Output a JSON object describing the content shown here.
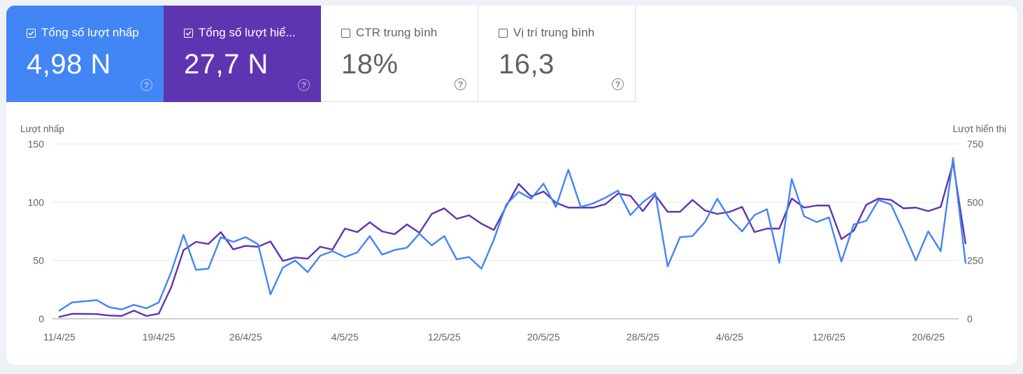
{
  "cards": [
    {
      "label": "Tổng số lượt nhấp",
      "value": "4,98 N",
      "checked": true,
      "color": "#4285f4"
    },
    {
      "label": "Tổng số lượt hiể...",
      "value": "27,7 N",
      "checked": true,
      "color": "#5e35b1"
    },
    {
      "label": "CTR trung bình",
      "value": "18%",
      "checked": false
    },
    {
      "label": "Vị trí trung bình",
      "value": "16,3",
      "checked": false
    }
  ],
  "help_glyph": "?",
  "chart": {
    "left_axis_title": "Lượt nhấp",
    "right_axis_title": "Lượt hiển thị"
  },
  "chart_data": {
    "type": "line",
    "title": "",
    "xlabel": "",
    "ylabel": "Lượt nhấp",
    "y2label": "Lượt hiển thị",
    "ylim": [
      0,
      150
    ],
    "y2lim": [
      0,
      750
    ],
    "yticks": [
      0,
      50,
      100,
      150
    ],
    "y2ticks": [
      0,
      250,
      500,
      750
    ],
    "grid": true,
    "legend": "none (metric cards above act as legend)",
    "x_tick_labels": [
      "11/4/25",
      "19/4/25",
      "26/4/25",
      "4/5/25",
      "12/5/25",
      "20/5/25",
      "28/5/25",
      "4/6/25",
      "12/6/25",
      "20/6/25"
    ],
    "x_tick_indices": [
      0,
      8,
      15,
      23,
      31,
      39,
      47,
      54,
      62,
      70
    ],
    "x_start": "11/4/25",
    "x_end": "23/6/25",
    "series": [
      {
        "name": "Lượt nhấp",
        "axis": "left",
        "color": "#4285f4",
        "values": [
          7,
          14,
          15,
          16,
          10,
          8,
          12,
          9,
          14,
          40,
          72,
          42,
          43,
          70,
          66,
          70,
          64,
          21,
          44,
          50,
          40,
          54,
          58,
          53,
          57,
          71,
          55,
          59,
          61,
          73,
          63,
          71,
          51,
          53,
          43,
          68,
          98,
          109,
          103,
          116,
          96,
          128,
          96,
          99,
          104,
          110,
          89,
          100,
          108,
          45,
          70,
          71,
          83,
          103,
          86,
          75,
          89,
          94,
          48,
          120,
          88,
          83,
          87,
          49,
          81,
          84,
          102,
          98,
          75,
          50,
          75,
          58,
          138,
          48
        ]
      },
      {
        "name": "Lượt hiển thị",
        "axis": "right",
        "color": "#5e35b1",
        "values": [
          8,
          21,
          21,
          20,
          14,
          12,
          35,
          12,
          22,
          135,
          295,
          330,
          321,
          372,
          298,
          313,
          309,
          332,
          248,
          263,
          258,
          309,
          297,
          387,
          372,
          414,
          375,
          363,
          405,
          369,
          450,
          474,
          429,
          444,
          408,
          381,
          483,
          579,
          525,
          546,
          498,
          477,
          477,
          477,
          492,
          537,
          528,
          462,
          531,
          459,
          459,
          510,
          465,
          450,
          459,
          480,
          372,
          387,
          387,
          516,
          477,
          486,
          486,
          342,
          378,
          489,
          516,
          510,
          474,
          477,
          462,
          480,
          669,
          324
        ]
      }
    ]
  }
}
